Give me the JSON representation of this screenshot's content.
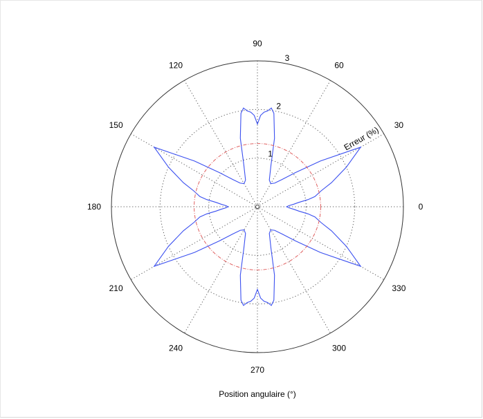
{
  "chart_data": {
    "type": "polar",
    "xlabel": "Position angulaire (°)",
    "rlabel": "Erreur (%)",
    "rlim": [
      0,
      3
    ],
    "rticks": [
      1,
      2,
      3
    ],
    "rtick_labels": [
      "1",
      "2",
      "3"
    ],
    "angle_ticks": [
      0,
      30,
      60,
      90,
      120,
      150,
      180,
      210,
      240,
      270,
      300,
      330
    ],
    "angle_tick_labels": [
      "0",
      "30",
      "60",
      "90",
      "120",
      "150",
      "180",
      "210",
      "240",
      "270",
      "300",
      "330"
    ],
    "grid": true,
    "series": [
      {
        "color": "#3a4ff0",
        "angle_deg": [
          0,
          2,
          4,
          6,
          8,
          10,
          14,
          18,
          24,
          30,
          36,
          42,
          48,
          54,
          60,
          66,
          72,
          76,
          80,
          82,
          84,
          86,
          88,
          90
        ],
        "r": [
          0.6,
          0.65,
          0.75,
          0.85,
          1.05,
          1.2,
          1.35,
          1.6,
          2.0,
          2.45,
          1.6,
          1.05,
          0.75,
          0.6,
          0.55,
          0.6,
          0.9,
          1.45,
          1.95,
          2.05,
          1.98,
          1.95,
          1.88,
          1.7
        ]
      },
      {
        "color": "#e06060",
        "style": "dash-dot",
        "angle_deg": [
          0,
          360
        ],
        "r": [
          1.3,
          1.3
        ]
      }
    ]
  }
}
